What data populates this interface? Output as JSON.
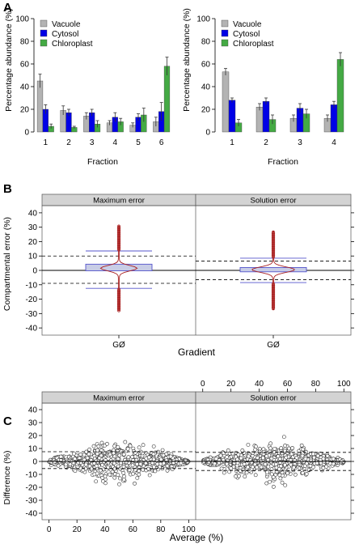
{
  "panels": {
    "A": "A",
    "B": "B",
    "C": "C"
  },
  "colors": {
    "vacuole": "#b3b3b3",
    "cytosol": "#0000e6",
    "chloroplast": "#44aa44",
    "strip_bg": "#d3d3d3",
    "violin_line": "#aa2222",
    "box_fill": "#c8cde6",
    "whisker_blue": "#5555cc"
  },
  "chart_data": [
    {
      "type": "bar",
      "panel": "A",
      "xlabel": "Fraction",
      "ylabel": "Percentage abundance (%)",
      "ylim": [
        0,
        100
      ],
      "yticks": [
        "0",
        "20",
        "40",
        "60",
        "80",
        "100"
      ],
      "categories": [
        "1",
        "2",
        "3",
        "4",
        "5",
        "6"
      ],
      "legend_placement": "top-left",
      "series": [
        {
          "name": "Vacuole",
          "values": [
            45,
            19,
            14,
            8,
            6,
            9
          ],
          "errors": [
            6,
            4,
            3,
            2,
            2,
            4
          ]
        },
        {
          "name": "Cytosol",
          "values": [
            20,
            17,
            17,
            13,
            13,
            18
          ],
          "errors": [
            4,
            3,
            3,
            4,
            3,
            8
          ]
        },
        {
          "name": "Chloroplast",
          "values": [
            5,
            4,
            7,
            9,
            15,
            58
          ],
          "errors": [
            2,
            1,
            3,
            3,
            6,
            8
          ]
        }
      ]
    },
    {
      "type": "bar",
      "panel": "A",
      "xlabel": "Fraction",
      "ylabel": "Percentage abundance (%)",
      "ylim": [
        0,
        100
      ],
      "yticks": [
        "0",
        "20",
        "40",
        "60",
        "80",
        "100"
      ],
      "categories": [
        "1",
        "2",
        "3",
        "4"
      ],
      "legend_placement": "top-left",
      "series": [
        {
          "name": "Vacuole",
          "values": [
            53,
            22,
            12,
            12
          ],
          "errors": [
            3,
            3,
            3,
            3
          ]
        },
        {
          "name": "Cytosol",
          "values": [
            28,
            27,
            21,
            24
          ],
          "errors": [
            2,
            3,
            4,
            3
          ]
        },
        {
          "name": "Chloroplast",
          "values": [
            8,
            11,
            16,
            64
          ],
          "errors": [
            3,
            4,
            4,
            6
          ]
        }
      ]
    },
    {
      "type": "box_violin",
      "panel": "B",
      "ylabel": "Compartmental error (%)",
      "xlabel": "Gradient",
      "ylim": [
        -45,
        45
      ],
      "yticks": [
        "40",
        "30",
        "20",
        "10",
        "0",
        "-10",
        "-20",
        "-30",
        "-40"
      ],
      "ytick_values": [
        40,
        30,
        20,
        10,
        0,
        -10,
        -20,
        -30,
        -40
      ],
      "panels": [
        {
          "strip": "Maximum error",
          "category": "GØ",
          "q1": -0.3,
          "median": 1.5,
          "q3": 4.3,
          "whisker_low": -12.5,
          "whisker_high": 13.5,
          "outlier_min": -28,
          "outlier_max": 31,
          "ref_high": 10,
          "ref_low": -9
        },
        {
          "strip": "Solution error",
          "category": "GØ",
          "q1": -1,
          "median": 0.5,
          "q3": 2,
          "whisker_low": -8.5,
          "whisker_high": 8.5,
          "outlier_min": -27,
          "outlier_max": 27,
          "ref_high": 6.5,
          "ref_low": -6.5
        }
      ]
    },
    {
      "type": "scatter",
      "panel": "C",
      "xlabel": "Average (%)",
      "ylabel": "Difference (%)",
      "xlim": [
        -5,
        105
      ],
      "ylim": [
        -45,
        45
      ],
      "xticks": [
        "0",
        "20",
        "40",
        "60",
        "80",
        "100"
      ],
      "xtick_values": [
        0,
        20,
        40,
        60,
        80,
        100
      ],
      "yticks": [
        "40",
        "30",
        "20",
        "10",
        "0",
        "-10",
        "-20",
        "-30",
        "-40"
      ],
      "ytick_values": [
        40,
        30,
        20,
        10,
        0,
        -10,
        -20,
        -30,
        -40
      ],
      "panels": [
        {
          "strip": "Maximum error",
          "ref_high": 7.5,
          "ref_low": -5.5,
          "n_points": 700,
          "seed": 11
        },
        {
          "strip": "Solution error",
          "ref_high": 7,
          "ref_low": -7,
          "n_points": 700,
          "seed": 29
        }
      ]
    }
  ]
}
